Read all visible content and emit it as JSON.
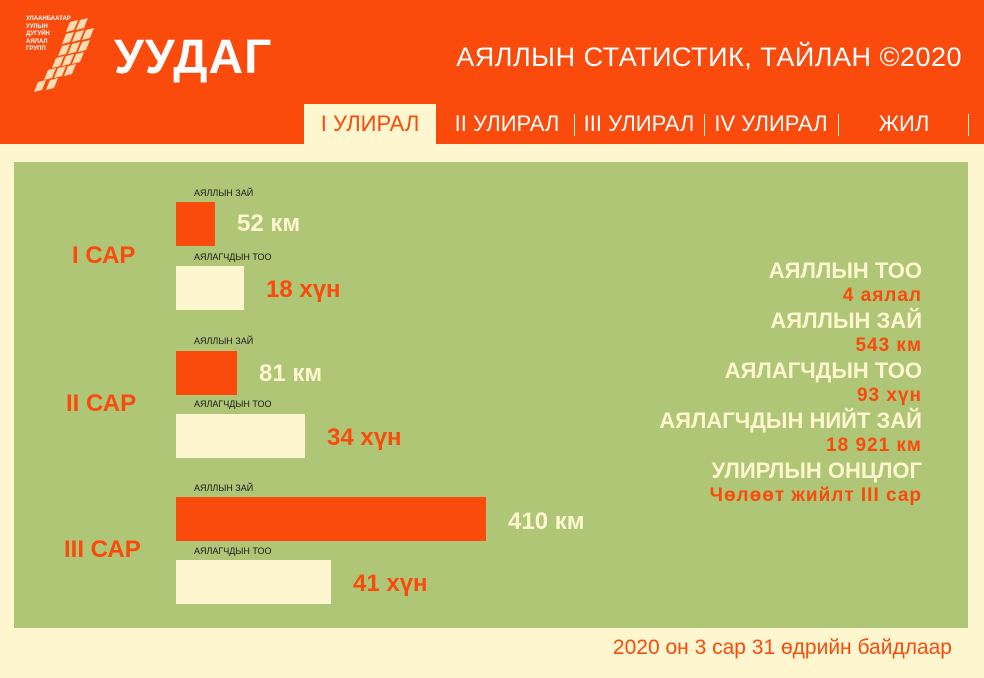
{
  "header": {
    "logo_text": [
      "УЛААНБААТАР",
      "УУЛЫН",
      "ДУГУЙН",
      "АЯЛАЛ",
      "ГРУПП"
    ],
    "brand": "УУДАГ",
    "title": "АЯЛЛЫН СТАТИСТИК, ТАЙЛАН ©2020"
  },
  "tabs": [
    {
      "label": "I УЛИРАЛ",
      "active": true
    },
    {
      "label": "II УЛИРАЛ",
      "active": false
    },
    {
      "label": "III УЛИРАЛ",
      "active": false
    },
    {
      "label": "IV УЛИРАЛ",
      "active": false
    },
    {
      "label": "ЖИЛ",
      "active": false
    }
  ],
  "colors": {
    "accent": "#fa4a0c",
    "cream": "#fdf6cf",
    "panel": "#aec676"
  },
  "chart_data": {
    "type": "bar",
    "orientation": "horizontal",
    "categories": [
      "I САР",
      "II САР",
      "III САР"
    ],
    "series": [
      {
        "name": "АЯЛЛЫН ЗАЙ",
        "values": [
          52,
          81,
          410
        ],
        "unit": "км",
        "color": "#fa4a0c",
        "labels": [
          "52 км",
          "81 км",
          "410 км"
        ]
      },
      {
        "name": "АЯЛАГЧДЫН ТОО",
        "values": [
          18,
          34,
          41
        ],
        "unit": "хүн",
        "color": "#fdf6cf",
        "labels": [
          "18 хүн",
          "34 хүн",
          "41 хүн"
        ]
      }
    ]
  },
  "summary": [
    {
      "label": "АЯЛЛЫН ТОО",
      "value": "4 аялал"
    },
    {
      "label": "АЯЛЛЫН ЗАЙ",
      "value": "543 км"
    },
    {
      "label": "АЯЛАГЧДЫН ТОО",
      "value": "93 хүн"
    },
    {
      "label": "АЯЛАГЧДЫН НИЙТ ЗАЙ",
      "value": "18 921 км"
    },
    {
      "label": "УЛИРЛЫН ОНЦЛОГ",
      "value": "Чөлөөт жийлт III сар"
    }
  ],
  "footnote": "2020 он 3 сар 31 өдрийн байдлаар"
}
